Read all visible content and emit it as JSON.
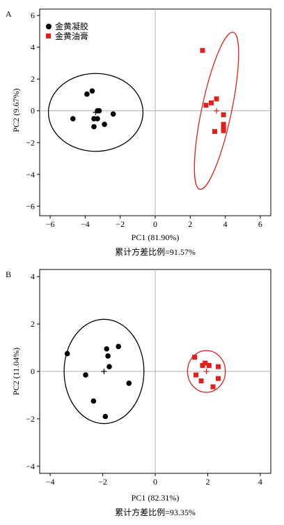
{
  "colors": {
    "gel": "#000000",
    "ointment": "#e0201b",
    "ref": "#b0b0b0"
  },
  "legend": {
    "gel_label": "金黄凝胶",
    "ointment_label": "金黄油膏"
  },
  "chart_data": [
    {
      "panel": "A",
      "type": "scatter",
      "xlabel": "PC1 (81.90%)",
      "ylabel": "PC2 (9.67%)",
      "note": "累计方差比例=91.57%",
      "xlim": [
        -6.6,
        6.6
      ],
      "ylim": [
        -6.6,
        6.4
      ],
      "xticks": [
        -6,
        -4,
        -2,
        0,
        2,
        4,
        6
      ],
      "yticks": [
        -6,
        -4,
        -2,
        0,
        2,
        4,
        6
      ],
      "tick_labels_x": [
        "−6",
        "−4",
        "−2",
        "0",
        "2",
        "4",
        "6"
      ],
      "tick_labels_y": [
        "−6",
        "−4",
        "−2",
        "0",
        "2",
        "4",
        "6"
      ],
      "legend_position": "top-left",
      "series": [
        {
          "key": "gel",
          "marker": "circle",
          "points": [
            [
              -4.7,
              -0.5
            ],
            [
              -3.9,
              1.05
            ],
            [
              -3.6,
              1.25
            ],
            [
              -3.5,
              -0.5
            ],
            [
              -3.5,
              -1.0
            ],
            [
              -3.3,
              0.0
            ],
            [
              -3.3,
              -0.5
            ],
            [
              -3.2,
              0.0
            ],
            [
              -2.9,
              -0.85
            ],
            [
              -2.4,
              -0.2
            ]
          ],
          "centroid": [
            -3.4,
            -0.1
          ],
          "ellipse": {
            "cx": -3.4,
            "cy": -0.1,
            "rx": 2.7,
            "ry": 2.45,
            "angle": 0
          }
        },
        {
          "key": "ointment",
          "marker": "square",
          "points": [
            [
              2.7,
              3.8
            ],
            [
              2.9,
              0.35
            ],
            [
              3.2,
              0.5
            ],
            [
              3.5,
              0.75
            ],
            [
              3.4,
              -1.3
            ],
            [
              3.9,
              -0.25
            ],
            [
              3.9,
              -0.85
            ],
            [
              3.9,
              -1.05
            ],
            [
              3.9,
              -1.25
            ],
            [
              3.9,
              -1.1
            ]
          ],
          "centroid": [
            3.5,
            0.0
          ],
          "ellipse": {
            "cx": 3.5,
            "cy": 0.0,
            "rx": 0.85,
            "ry": 5.05,
            "angle": 12
          }
        }
      ]
    },
    {
      "panel": "B",
      "type": "scatter",
      "xlabel": "PC1 (82.31%)",
      "ylabel": "PC2 (11.04%)",
      "note": "累计方差比例=93.35%",
      "xlim": [
        -4.4,
        4.4
      ],
      "ylim": [
        -4.3,
        4.3
      ],
      "xticks": [
        -4,
        -2,
        0,
        2,
        4
      ],
      "yticks": [
        -4,
        -2,
        0,
        2,
        4
      ],
      "tick_labels_x": [
        "−4",
        "−2",
        "0",
        "2",
        "4"
      ],
      "tick_labels_y": [
        "−4",
        "−2",
        "0",
        "2",
        "4"
      ],
      "series": [
        {
          "key": "gel",
          "marker": "circle",
          "points": [
            [
              -3.35,
              0.75
            ],
            [
              -2.65,
              -0.15
            ],
            [
              -2.35,
              -1.25
            ],
            [
              -1.9,
              -1.9
            ],
            [
              -1.85,
              0.95
            ],
            [
              -1.8,
              0.65
            ],
            [
              -1.75,
              0.2
            ],
            [
              -1.4,
              1.05
            ],
            [
              -1.0,
              -0.5
            ]
          ],
          "centroid": [
            -1.95,
            0.0
          ],
          "ellipse": {
            "cx": -1.95,
            "cy": 0.0,
            "rx": 1.52,
            "ry": 2.2,
            "angle": 0
          }
        },
        {
          "key": "ointment",
          "marker": "square",
          "points": [
            [
              1.5,
              0.6
            ],
            [
              1.55,
              -0.15
            ],
            [
              1.75,
              -0.4
            ],
            [
              1.8,
              0.25
            ],
            [
              1.9,
              0.35
            ],
            [
              2.05,
              0.25
            ],
            [
              2.2,
              -0.65
            ],
            [
              2.4,
              0.2
            ],
            [
              2.4,
              -0.3
            ]
          ],
          "centroid": [
            1.95,
            0.0
          ],
          "ellipse": {
            "cx": 1.95,
            "cy": 0.0,
            "rx": 0.72,
            "ry": 0.88,
            "angle": 0
          }
        }
      ]
    }
  ]
}
